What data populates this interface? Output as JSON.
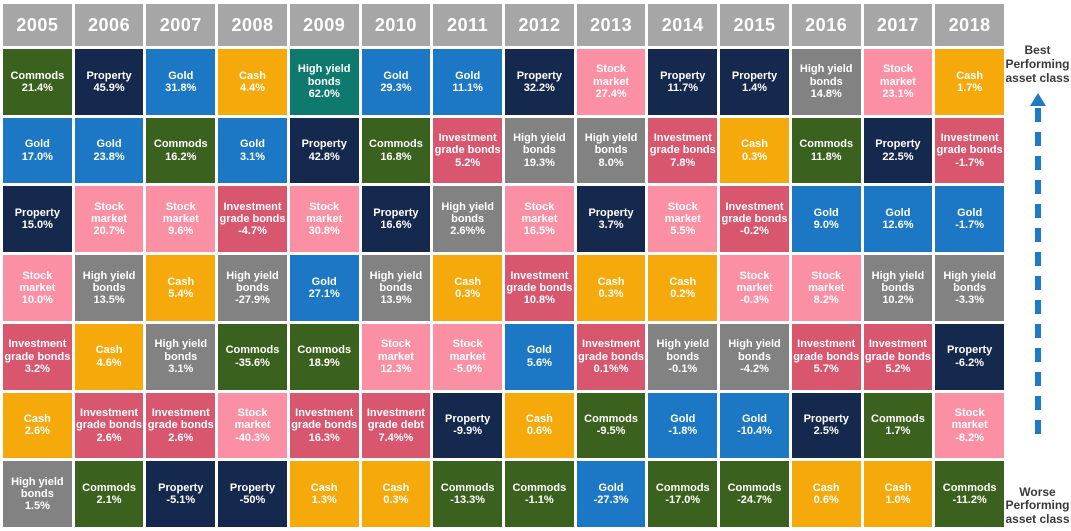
{
  "legend": {
    "best": "Best\nPerforming\nasset class",
    "worse": "Worse\nPerforming\nasset class",
    "arrow_color": "#1F7AC6"
  },
  "colors": {
    "header": "#A6A6A6",
    "commods": "#3A611E",
    "property": "#15284E",
    "gold": "#1C78C4",
    "cash": "#F5A90B",
    "high_yield": "#828282",
    "high_yield_alt": "#0E7A6E",
    "stock_market": "#FB90A5",
    "inv_grade": "#D8576F"
  },
  "chart_data": {
    "type": "table",
    "description_rows": "columns are years; cells ranked top=best performing to bottom=worst performing",
    "columns": [
      {
        "year": "2005",
        "cells": [
          {
            "label": "Commods",
            "value": "21.4%",
            "color": "commods"
          },
          {
            "label": "Gold",
            "value": "17.0%",
            "color": "gold"
          },
          {
            "label": "Property",
            "value": "15.0%",
            "color": "property"
          },
          {
            "label": "Stock market",
            "value": "10.0%",
            "color": "stock_market"
          },
          {
            "label": "Investment grade bonds",
            "value": "3.2%",
            "color": "inv_grade"
          },
          {
            "label": "Cash",
            "value": "2.6%",
            "color": "cash"
          },
          {
            "label": "High yield bonds",
            "value": "1.5%",
            "color": "high_yield"
          }
        ]
      },
      {
        "year": "2006",
        "cells": [
          {
            "label": "Property",
            "value": "45.9%",
            "color": "property"
          },
          {
            "label": "Gold",
            "value": "23.8%",
            "color": "gold"
          },
          {
            "label": "Stock market",
            "value": "20.7%",
            "color": "stock_market"
          },
          {
            "label": "High yield bonds",
            "value": "13.5%",
            "color": "high_yield"
          },
          {
            "label": "Cash",
            "value": "4.6%",
            "color": "cash"
          },
          {
            "label": "Investment grade bonds",
            "value": "2.6%",
            "color": "inv_grade"
          },
          {
            "label": "Commods",
            "value": "2.1%",
            "color": "commods"
          }
        ]
      },
      {
        "year": "2007",
        "cells": [
          {
            "label": "Gold",
            "value": "31.8%",
            "color": "gold"
          },
          {
            "label": "Commods",
            "value": "16.2%",
            "color": "commods"
          },
          {
            "label": "Stock market",
            "value": "9.6%",
            "color": "stock_market"
          },
          {
            "label": "Cash",
            "value": "5.4%",
            "color": "cash"
          },
          {
            "label": "High yield bonds",
            "value": "3.1%",
            "color": "high_yield"
          },
          {
            "label": "Investment grade bonds",
            "value": "2.6%",
            "color": "inv_grade"
          },
          {
            "label": "Property",
            "value": "-5.1%",
            "color": "property"
          }
        ]
      },
      {
        "year": "2008",
        "cells": [
          {
            "label": "Cash",
            "value": "4.4%",
            "color": "cash"
          },
          {
            "label": "Gold",
            "value": "3.1%",
            "color": "gold"
          },
          {
            "label": "Investment grade bonds",
            "value": "-4.7%",
            "color": "inv_grade"
          },
          {
            "label": "High yield bonds",
            "value": "-27.9%",
            "color": "high_yield"
          },
          {
            "label": "Commods",
            "value": "-35.6%",
            "color": "commods"
          },
          {
            "label": "Stock market",
            "value": "-40.3%",
            "color": "stock_market"
          },
          {
            "label": "Property",
            "value": "-50%",
            "color": "property"
          }
        ]
      },
      {
        "year": "2009",
        "cells": [
          {
            "label": "High yield bonds",
            "value": "62.0%",
            "color": "high_yield_alt"
          },
          {
            "label": "Property",
            "value": "42.8%",
            "color": "property"
          },
          {
            "label": "Stock market",
            "value": "30.8%",
            "color": "stock_market"
          },
          {
            "label": "Gold",
            "value": "27.1%",
            "color": "gold"
          },
          {
            "label": "Commods",
            "value": "18.9%",
            "color": "commods"
          },
          {
            "label": "Investment grade bonds",
            "value": "16.3%",
            "color": "inv_grade"
          },
          {
            "label": "Cash",
            "value": "1.3%",
            "color": "cash"
          }
        ]
      },
      {
        "year": "2010",
        "cells": [
          {
            "label": "Gold",
            "value": "29.3%",
            "color": "gold"
          },
          {
            "label": "Commods",
            "value": "16.8%",
            "color": "commods"
          },
          {
            "label": "Property",
            "value": "16.6%",
            "color": "property"
          },
          {
            "label": "High yield bonds",
            "value": "13.9%",
            "color": "high_yield"
          },
          {
            "label": "Stock market",
            "value": "12.3%",
            "color": "stock_market"
          },
          {
            "label": "Investment grade debt",
            "value": "7.4%%",
            "color": "inv_grade"
          },
          {
            "label": "Cash",
            "value": "0.3%",
            "color": "cash"
          }
        ]
      },
      {
        "year": "2011",
        "cells": [
          {
            "label": "Gold",
            "value": "11.1%",
            "color": "gold"
          },
          {
            "label": "Investment grade bonds",
            "value": "5.2%",
            "color": "inv_grade"
          },
          {
            "label": "High yield bonds",
            "value": "2.6%%",
            "color": "high_yield"
          },
          {
            "label": "Cash",
            "value": "0.3%",
            "color": "cash"
          },
          {
            "label": "Stock market",
            "value": "-5.0%",
            "color": "stock_market"
          },
          {
            "label": "Property",
            "value": "-9.9%",
            "color": "property"
          },
          {
            "label": "Commods",
            "value": "-13.3%",
            "color": "commods"
          }
        ]
      },
      {
        "year": "2012",
        "cells": [
          {
            "label": "Property",
            "value": "32.2%",
            "color": "property"
          },
          {
            "label": "High yield bonds",
            "value": "19.3%",
            "color": "high_yield"
          },
          {
            "label": "Stock market",
            "value": "16.5%",
            "color": "stock_market"
          },
          {
            "label": "Investment grade bonds",
            "value": "10.8%",
            "color": "inv_grade"
          },
          {
            "label": "Gold",
            "value": "5.6%",
            "color": "gold"
          },
          {
            "label": "Cash",
            "value": "0.6%",
            "color": "cash"
          },
          {
            "label": "Commods",
            "value": "-1.1%",
            "color": "commods"
          }
        ]
      },
      {
        "year": "2013",
        "cells": [
          {
            "label": "Stock market",
            "value": "27.4%",
            "color": "stock_market"
          },
          {
            "label": "High yield bonds",
            "value": "8.0%",
            "color": "high_yield"
          },
          {
            "label": "Property",
            "value": "3.7%",
            "color": "property"
          },
          {
            "label": "Cash",
            "value": "0.3%",
            "color": "cash"
          },
          {
            "label": "Investment grade bonds",
            "value": "0.1%%",
            "color": "inv_grade"
          },
          {
            "label": "Commods",
            "value": "-9.5%",
            "color": "commods"
          },
          {
            "label": "Gold",
            "value": "-27.3%",
            "color": "gold"
          }
        ]
      },
      {
        "year": "2014",
        "cells": [
          {
            "label": "Property",
            "value": "11.7%",
            "color": "property"
          },
          {
            "label": "Investment grade bonds",
            "value": "7.8%",
            "color": "inv_grade"
          },
          {
            "label": "Stock market",
            "value": "5.5%",
            "color": "stock_market"
          },
          {
            "label": "Cash",
            "value": "0.2%",
            "color": "cash"
          },
          {
            "label": "High yield bonds",
            "value": "-0.1%",
            "color": "high_yield"
          },
          {
            "label": "Gold",
            "value": "-1.8%",
            "color": "gold"
          },
          {
            "label": "Commods",
            "value": "-17.0%",
            "color": "commods"
          }
        ]
      },
      {
        "year": "2015",
        "cells": [
          {
            "label": "Property",
            "value": "1.4%",
            "color": "property"
          },
          {
            "label": "Cash",
            "value": "0.3%",
            "color": "cash"
          },
          {
            "label": "Investment grade bonds",
            "value": "-0.2%",
            "color": "inv_grade"
          },
          {
            "label": "Stock market",
            "value": "-0.3%",
            "color": "stock_market"
          },
          {
            "label": "High yield bonds",
            "value": "-4.2%",
            "color": "high_yield"
          },
          {
            "label": "Gold",
            "value": "-10.4%",
            "color": "gold"
          },
          {
            "label": "Commods",
            "value": "-24.7%",
            "color": "commods"
          }
        ]
      },
      {
        "year": "2016",
        "cells": [
          {
            "label": "High yield bonds",
            "value": "14.8%",
            "color": "high_yield"
          },
          {
            "label": "Commods",
            "value": "11.8%",
            "color": "commods"
          },
          {
            "label": "Gold",
            "value": "9.0%",
            "color": "gold"
          },
          {
            "label": "Stock market",
            "value": "8.2%",
            "color": "stock_market"
          },
          {
            "label": "Investment grade bonds",
            "value": "5.7%",
            "color": "inv_grade"
          },
          {
            "label": "Property",
            "value": "2.5%",
            "color": "property"
          },
          {
            "label": "Cash",
            "value": "0.6%",
            "color": "cash"
          }
        ]
      },
      {
        "year": "2017",
        "cells": [
          {
            "label": "Stock market",
            "value": "23.1%",
            "color": "stock_market"
          },
          {
            "label": "Property",
            "value": "22.5%",
            "color": "property"
          },
          {
            "label": "Gold",
            "value": "12.6%",
            "color": "gold"
          },
          {
            "label": "High yield bonds",
            "value": "10.2%",
            "color": "high_yield"
          },
          {
            "label": "Investment grade bonds",
            "value": "5.2%",
            "color": "inv_grade"
          },
          {
            "label": "Commods",
            "value": "1.7%",
            "color": "commods"
          },
          {
            "label": "Cash",
            "value": "1.0%",
            "color": "cash"
          }
        ]
      },
      {
        "year": "2018",
        "cells": [
          {
            "label": "Cash",
            "value": "1.7%",
            "color": "cash"
          },
          {
            "label": "Investment grade bonds",
            "value": "-1.7%",
            "color": "inv_grade"
          },
          {
            "label": "Gold",
            "value": "-1.7%",
            "color": "gold"
          },
          {
            "label": "High yield bonds",
            "value": "-3.3%",
            "color": "high_yield"
          },
          {
            "label": "Property",
            "value": "-6.2%",
            "color": "property"
          },
          {
            "label": "Stock market",
            "value": "-8.2%",
            "color": "stock_market"
          },
          {
            "label": "Commods",
            "value": "-11.2%",
            "color": "commods"
          }
        ]
      }
    ]
  }
}
